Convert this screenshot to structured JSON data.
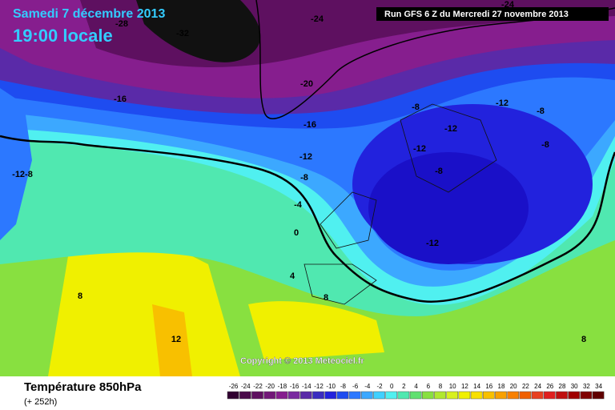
{
  "header": {
    "date": "Samedi 7 décembre 2013",
    "time": "19:00 locale",
    "run": "Run GFS 6 Z du Mercredi 27 novembre 2013"
  },
  "map": {
    "copyright": "Copyright © 2013 Meteociel.fr",
    "contour_labels": [
      "-24",
      "-32",
      "-28",
      "-24",
      "-20",
      "-16",
      "-16",
      "-12",
      "-8",
      "-4",
      "0",
      "4",
      "8",
      "8",
      "12",
      "-12-8",
      "-8",
      "-12",
      "-8",
      "-12",
      "-12",
      "-8",
      "-8",
      "-12",
      "8"
    ]
  },
  "footer": {
    "title": "Température 850hPa",
    "lead": "(+ 252h)"
  },
  "legend": {
    "ticks": [
      -26,
      -24,
      -22,
      -20,
      -18,
      -16,
      -14,
      -12,
      -10,
      -8,
      -6,
      -4,
      -2,
      0,
      2,
      4,
      6,
      8,
      10,
      12,
      14,
      16,
      18,
      20,
      22,
      24,
      26,
      28,
      30,
      32,
      34
    ],
    "colors": [
      "#300030",
      "#4a0a4a",
      "#5e1060",
      "#721878",
      "#861e8e",
      "#7a2aa0",
      "#5a2aa8",
      "#3a2cc0",
      "#2222dd",
      "#1e4cf0",
      "#2c78ff",
      "#3ca8ff",
      "#40d0ff",
      "#50f0f0",
      "#50e8b0",
      "#60e070",
      "#88e040",
      "#b0e830",
      "#d8f020",
      "#f0f000",
      "#f8e000",
      "#f8c000",
      "#f8a000",
      "#f88000",
      "#f06000",
      "#e84020",
      "#e02020",
      "#c01010",
      "#a00000",
      "#800000",
      "#600000"
    ]
  }
}
